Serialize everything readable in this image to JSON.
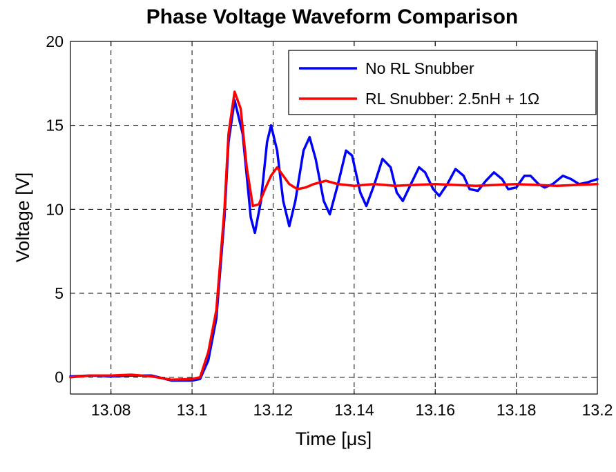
{
  "chart_data": {
    "type": "line",
    "title": "Phase Voltage Waveform Comparison",
    "xlabel": "Time [μs]",
    "ylabel": "Voltage [V]",
    "xlim": [
      13.07,
      13.2
    ],
    "ylim": [
      -1,
      20
    ],
    "xticks": [
      13.08,
      13.1,
      13.12,
      13.14,
      13.16,
      13.18,
      13.2
    ],
    "xtick_labels": [
      "13.08",
      "13.1",
      "13.12",
      "13.14",
      "13.16",
      "13.18",
      "13.2"
    ],
    "yticks": [
      0,
      5,
      10,
      15,
      20
    ],
    "ytick_labels": [
      "0",
      "5",
      "10",
      "15",
      "20"
    ],
    "grid": true,
    "legend_position": "top-right",
    "series": [
      {
        "name": "No RL Snubber",
        "color": "#0000ff",
        "points": [
          [
            13.07,
            0.05
          ],
          [
            13.075,
            0.1
          ],
          [
            13.08,
            0.05
          ],
          [
            13.085,
            0.1
          ],
          [
            13.09,
            0.1
          ],
          [
            13.095,
            -0.2
          ],
          [
            13.1,
            -0.2
          ],
          [
            13.102,
            -0.1
          ],
          [
            13.104,
            1.0
          ],
          [
            13.106,
            3.5
          ],
          [
            13.108,
            9.5
          ],
          [
            13.109,
            14.0
          ],
          [
            13.1105,
            16.5
          ],
          [
            13.1125,
            14.5
          ],
          [
            13.1145,
            9.5
          ],
          [
            13.1155,
            8.6
          ],
          [
            13.117,
            10.5
          ],
          [
            13.1185,
            14.0
          ],
          [
            13.1195,
            15.0
          ],
          [
            13.121,
            13.5
          ],
          [
            13.1225,
            10.5
          ],
          [
            13.124,
            9.0
          ],
          [
            13.1255,
            10.5
          ],
          [
            13.1275,
            13.5
          ],
          [
            13.129,
            14.3
          ],
          [
            13.1305,
            13.0
          ],
          [
            13.1325,
            10.5
          ],
          [
            13.134,
            9.7
          ],
          [
            13.136,
            11.5
          ],
          [
            13.138,
            13.5
          ],
          [
            13.1395,
            13.2
          ],
          [
            13.1415,
            11.0
          ],
          [
            13.143,
            10.2
          ],
          [
            13.145,
            11.5
          ],
          [
            13.147,
            13.0
          ],
          [
            13.149,
            12.5
          ],
          [
            13.1505,
            11.0
          ],
          [
            13.152,
            10.5
          ],
          [
            13.154,
            11.5
          ],
          [
            13.156,
            12.5
          ],
          [
            13.1575,
            12.2
          ],
          [
            13.1595,
            11.2
          ],
          [
            13.161,
            10.8
          ],
          [
            13.163,
            11.5
          ],
          [
            13.165,
            12.4
          ],
          [
            13.167,
            12.0
          ],
          [
            13.1685,
            11.2
          ],
          [
            13.1705,
            11.1
          ],
          [
            13.1725,
            11.7
          ],
          [
            13.1745,
            12.2
          ],
          [
            13.1765,
            11.8
          ],
          [
            13.178,
            11.2
          ],
          [
            13.18,
            11.3
          ],
          [
            13.182,
            12.0
          ],
          [
            13.1835,
            12.0
          ],
          [
            13.1855,
            11.5
          ],
          [
            13.187,
            11.3
          ],
          [
            13.189,
            11.5
          ],
          [
            13.1915,
            12.0
          ],
          [
            13.1935,
            11.8
          ],
          [
            13.1955,
            11.5
          ],
          [
            13.1975,
            11.6
          ],
          [
            13.2,
            11.8
          ]
        ]
      },
      {
        "name": "RL Snubber: 2.5nH + 1Ω",
        "color": "#ff0000",
        "points": [
          [
            13.07,
            0.0
          ],
          [
            13.075,
            0.1
          ],
          [
            13.08,
            0.1
          ],
          [
            13.085,
            0.15
          ],
          [
            13.09,
            0.05
          ],
          [
            13.095,
            -0.15
          ],
          [
            13.1,
            -0.1
          ],
          [
            13.102,
            0.0
          ],
          [
            13.104,
            1.5
          ],
          [
            13.106,
            4.0
          ],
          [
            13.108,
            10.0
          ],
          [
            13.109,
            14.5
          ],
          [
            13.1105,
            17.0
          ],
          [
            13.112,
            16.0
          ],
          [
            13.1135,
            12.5
          ],
          [
            13.115,
            10.2
          ],
          [
            13.1165,
            10.3
          ],
          [
            13.118,
            11.2
          ],
          [
            13.1195,
            12.0
          ],
          [
            13.121,
            12.5
          ],
          [
            13.1225,
            12.0
          ],
          [
            13.124,
            11.5
          ],
          [
            13.126,
            11.2
          ],
          [
            13.128,
            11.3
          ],
          [
            13.13,
            11.5
          ],
          [
            13.133,
            11.7
          ],
          [
            13.136,
            11.5
          ],
          [
            13.14,
            11.4
          ],
          [
            13.145,
            11.5
          ],
          [
            13.15,
            11.4
          ],
          [
            13.16,
            11.5
          ],
          [
            13.17,
            11.4
          ],
          [
            13.18,
            11.5
          ],
          [
            13.19,
            11.4
          ],
          [
            13.2,
            11.5
          ]
        ]
      }
    ]
  }
}
